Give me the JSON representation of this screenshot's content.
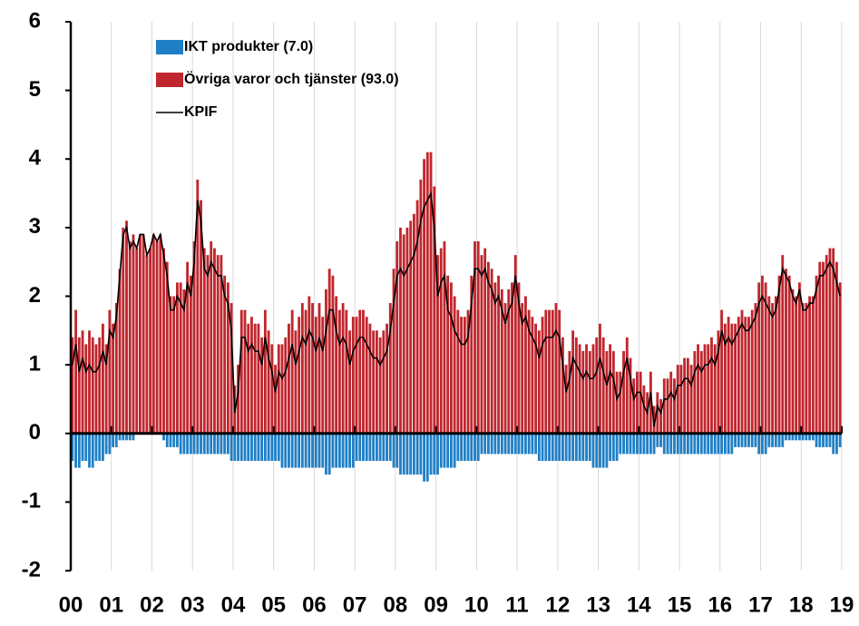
{
  "chart_data": {
    "type": "bar",
    "stacked": true,
    "legend": "upper left",
    "grid": "x",
    "xlim": [
      0,
      228
    ],
    "xticks": [
      {
        "value": 0,
        "label": "00"
      },
      {
        "value": 12,
        "label": "01"
      },
      {
        "value": 24,
        "label": "02"
      },
      {
        "value": 36,
        "label": "03"
      },
      {
        "value": 48,
        "label": "04"
      },
      {
        "value": 60,
        "label": "05"
      },
      {
        "value": 72,
        "label": "06"
      },
      {
        "value": 84,
        "label": "07"
      },
      {
        "value": 96,
        "label": "08"
      },
      {
        "value": 108,
        "label": "09"
      },
      {
        "value": 120,
        "label": "10"
      },
      {
        "value": 132,
        "label": "11"
      },
      {
        "value": 144,
        "label": "12"
      },
      {
        "value": 156,
        "label": "13"
      },
      {
        "value": 168,
        "label": "14"
      },
      {
        "value": 180,
        "label": "15"
      },
      {
        "value": 192,
        "label": "16"
      },
      {
        "value": 204,
        "label": "17"
      },
      {
        "value": 216,
        "label": "18"
      },
      {
        "value": 228,
        "label": "19"
      }
    ],
    "ylim": [
      -2,
      6
    ],
    "yticks": [
      -2,
      -1,
      0,
      1,
      2,
      3,
      4,
      5,
      6
    ],
    "series": [
      {
        "name": "IKT produkter (7.0)",
        "type": "bar",
        "color": "#1f7fc6",
        "values": [
          -0.4,
          -0.5,
          -0.5,
          -0.4,
          -0.4,
          -0.5,
          -0.5,
          -0.4,
          -0.4,
          -0.4,
          -0.3,
          -0.3,
          -0.2,
          -0.2,
          -0.1,
          -0.1,
          -0.1,
          -0.1,
          -0.1,
          0,
          0,
          0,
          0,
          0,
          0,
          0,
          0,
          -0.1,
          -0.2,
          -0.2,
          -0.2,
          -0.2,
          -0.3,
          -0.3,
          -0.3,
          -0.3,
          -0.3,
          -0.3,
          -0.3,
          -0.3,
          -0.3,
          -0.3,
          -0.3,
          -0.3,
          -0.3,
          -0.3,
          -0.3,
          -0.4,
          -0.4,
          -0.4,
          -0.4,
          -0.4,
          -0.4,
          -0.4,
          -0.4,
          -0.4,
          -0.4,
          -0.4,
          -0.4,
          -0.4,
          -0.4,
          -0.4,
          -0.5,
          -0.5,
          -0.5,
          -0.5,
          -0.5,
          -0.5,
          -0.5,
          -0.5,
          -0.5,
          -0.5,
          -0.5,
          -0.5,
          -0.5,
          -0.6,
          -0.6,
          -0.5,
          -0.5,
          -0.5,
          -0.5,
          -0.5,
          -0.5,
          -0.5,
          -0.4,
          -0.4,
          -0.4,
          -0.4,
          -0.4,
          -0.4,
          -0.4,
          -0.4,
          -0.4,
          -0.4,
          -0.4,
          -0.5,
          -0.5,
          -0.6,
          -0.6,
          -0.6,
          -0.6,
          -0.6,
          -0.6,
          -0.6,
          -0.7,
          -0.7,
          -0.6,
          -0.6,
          -0.6,
          -0.5,
          -0.5,
          -0.5,
          -0.5,
          -0.5,
          -0.4,
          -0.4,
          -0.4,
          -0.4,
          -0.4,
          -0.4,
          -0.4,
          -0.3,
          -0.3,
          -0.3,
          -0.3,
          -0.3,
          -0.3,
          -0.3,
          -0.3,
          -0.3,
          -0.3,
          -0.3,
          -0.3,
          -0.3,
          -0.3,
          -0.3,
          -0.3,
          -0.3,
          -0.4,
          -0.4,
          -0.4,
          -0.4,
          -0.4,
          -0.4,
          -0.4,
          -0.4,
          -0.4,
          -0.4,
          -0.4,
          -0.4,
          -0.4,
          -0.4,
          -0.4,
          -0.4,
          -0.5,
          -0.5,
          -0.5,
          -0.5,
          -0.5,
          -0.4,
          -0.4,
          -0.4,
          -0.3,
          -0.3,
          -0.3,
          -0.3,
          -0.3,
          -0.3,
          -0.3,
          -0.3,
          -0.3,
          -0.3,
          -0.3,
          -0.2,
          -0.2,
          -0.3,
          -0.3,
          -0.3,
          -0.3,
          -0.3,
          -0.3,
          -0.3,
          -0.3,
          -0.3,
          -0.3,
          -0.3,
          -0.3,
          -0.3,
          -0.3,
          -0.3,
          -0.3,
          -0.3,
          -0.3,
          -0.3,
          -0.3,
          -0.3,
          -0.2,
          -0.2,
          -0.2,
          -0.2,
          -0.2,
          -0.2,
          -0.2,
          -0.3,
          -0.3,
          -0.3,
          -0.2,
          -0.2,
          -0.2,
          -0.2,
          -0.2,
          -0.1,
          -0.1,
          -0.1,
          -0.1,
          -0.1,
          -0.1,
          -0.1,
          -0.1,
          -0.1,
          -0.2,
          -0.2,
          -0.2,
          -0.2,
          -0.2,
          -0.3,
          -0.3,
          -0.2
        ]
      },
      {
        "name": "Övriga varor och tjänster (93.0)",
        "type": "bar",
        "color": "#c0262d",
        "values": [
          1.4,
          1.8,
          1.4,
          1.5,
          1.3,
          1.5,
          1.4,
          1.3,
          1.4,
          1.6,
          1.3,
          1.8,
          1.6,
          1.9,
          2.4,
          3.0,
          3.1,
          2.8,
          2.9,
          2.7,
          2.9,
          2.9,
          2.6,
          2.7,
          2.9,
          2.8,
          2.9,
          2.7,
          2.5,
          2.0,
          2.0,
          2.2,
          2.2,
          2.1,
          2.5,
          2.3,
          2.8,
          3.7,
          3.4,
          2.7,
          2.6,
          2.8,
          2.7,
          2.6,
          2.6,
          2.3,
          2.2,
          1.9,
          0.7,
          1.0,
          1.8,
          1.8,
          1.6,
          1.7,
          1.6,
          1.6,
          1.4,
          1.8,
          1.5,
          1.3,
          1.0,
          1.3,
          1.3,
          1.4,
          1.6,
          1.8,
          1.5,
          1.7,
          1.9,
          1.8,
          2.0,
          1.9,
          1.7,
          1.9,
          1.7,
          2.1,
          2.4,
          2.3,
          2.0,
          1.8,
          1.9,
          1.8,
          1.5,
          1.7,
          1.7,
          1.8,
          1.8,
          1.7,
          1.6,
          1.5,
          1.5,
          1.4,
          1.5,
          1.6,
          1.9,
          2.4,
          2.8,
          3.0,
          2.9,
          3.0,
          3.1,
          3.2,
          3.4,
          3.7,
          4.0,
          4.1,
          4.1,
          3.6,
          2.6,
          2.7,
          2.8,
          2.3,
          2.2,
          2.0,
          1.8,
          1.7,
          1.7,
          1.8,
          2.3,
          2.8,
          2.8,
          2.6,
          2.7,
          2.5,
          2.4,
          2.2,
          2.3,
          2.1,
          1.9,
          2.1,
          2.2,
          2.6,
          2.2,
          1.9,
          2.0,
          1.8,
          1.7,
          1.6,
          1.5,
          1.7,
          1.8,
          1.8,
          1.8,
          1.9,
          1.8,
          1.4,
          1.0,
          1.2,
          1.5,
          1.4,
          1.3,
          1.2,
          1.3,
          1.2,
          1.3,
          1.4,
          1.6,
          1.4,
          1.2,
          1.3,
          1.2,
          0.9,
          0.9,
          1.2,
          1.4,
          1.1,
          0.8,
          0.9,
          0.9,
          0.7,
          0.6,
          0.9,
          0.4,
          0.6,
          0.5,
          0.8,
          0.8,
          0.9,
          0.8,
          1.0,
          1.0,
          1.1,
          1.1,
          1.0,
          1.2,
          1.3,
          1.2,
          1.3,
          1.3,
          1.4,
          1.3,
          1.5,
          1.8,
          1.6,
          1.7,
          1.6,
          1.6,
          1.7,
          1.8,
          1.7,
          1.7,
          1.8,
          1.9,
          2.2,
          2.3,
          2.2,
          2.0,
          1.9,
          2.0,
          2.3,
          2.6,
          2.4,
          2.3,
          2.1,
          2.0,
          2.2,
          1.9,
          1.9,
          2.0,
          2.0,
          2.3,
          2.5,
          2.5,
          2.6,
          2.7,
          2.7,
          2.5,
          2.2
        ]
      },
      {
        "name": "KPIF",
        "type": "line",
        "color": "#000000",
        "values": [
          1.0,
          1.3,
          0.9,
          1.1,
          0.9,
          1.0,
          0.9,
          0.9,
          1.0,
          1.2,
          1.0,
          1.5,
          1.4,
          1.7,
          2.3,
          2.9,
          3.0,
          2.7,
          2.8,
          2.7,
          2.9,
          2.9,
          2.6,
          2.7,
          2.9,
          2.8,
          2.9,
          2.6,
          2.3,
          1.8,
          1.8,
          2.0,
          1.9,
          1.8,
          2.2,
          2.0,
          2.5,
          3.4,
          3.1,
          2.4,
          2.3,
          2.5,
          2.4,
          2.3,
          2.3,
          2.0,
          1.9,
          1.5,
          0.3,
          0.6,
          1.4,
          1.4,
          1.2,
          1.3,
          1.2,
          1.2,
          1.0,
          1.4,
          1.1,
          0.9,
          0.6,
          0.9,
          0.8,
          0.9,
          1.1,
          1.3,
          1.0,
          1.2,
          1.4,
          1.3,
          1.5,
          1.4,
          1.2,
          1.4,
          1.2,
          1.5,
          1.8,
          1.8,
          1.5,
          1.3,
          1.4,
          1.3,
          1.0,
          1.2,
          1.3,
          1.4,
          1.4,
          1.3,
          1.2,
          1.1,
          1.1,
          1.0,
          1.1,
          1.2,
          1.5,
          1.9,
          2.3,
          2.4,
          2.3,
          2.4,
          2.5,
          2.6,
          2.8,
          3.1,
          3.3,
          3.4,
          3.5,
          3.0,
          2.0,
          2.2,
          2.3,
          1.8,
          1.7,
          1.5,
          1.4,
          1.3,
          1.3,
          1.4,
          1.9,
          2.4,
          2.4,
          2.3,
          2.4,
          2.2,
          2.1,
          1.9,
          2.0,
          1.8,
          1.6,
          1.8,
          1.9,
          2.3,
          1.9,
          1.6,
          1.7,
          1.5,
          1.4,
          1.3,
          1.1,
          1.3,
          1.4,
          1.4,
          1.4,
          1.5,
          1.4,
          1.0,
          0.6,
          0.8,
          1.1,
          1.0,
          0.9,
          0.8,
          0.9,
          0.8,
          0.8,
          0.9,
          1.1,
          0.9,
          0.7,
          0.9,
          0.8,
          0.5,
          0.6,
          0.9,
          1.1,
          0.8,
          0.5,
          0.6,
          0.6,
          0.4,
          0.3,
          0.6,
          0.1,
          0.4,
          0.3,
          0.5,
          0.5,
          0.6,
          0.5,
          0.7,
          0.7,
          0.8,
          0.8,
          0.7,
          0.9,
          1.0,
          0.9,
          1.0,
          1.0,
          1.1,
          1.0,
          1.2,
          1.5,
          1.3,
          1.4,
          1.3,
          1.4,
          1.5,
          1.6,
          1.5,
          1.5,
          1.6,
          1.7,
          1.9,
          2.0,
          1.9,
          1.8,
          1.7,
          1.8,
          2.1,
          2.4,
          2.3,
          2.2,
          2.0,
          1.9,
          2.1,
          1.8,
          1.8,
          1.9,
          1.9,
          2.1,
          2.3,
          2.3,
          2.4,
          2.5,
          2.4,
          2.2,
          2.0
        ]
      }
    ]
  }
}
